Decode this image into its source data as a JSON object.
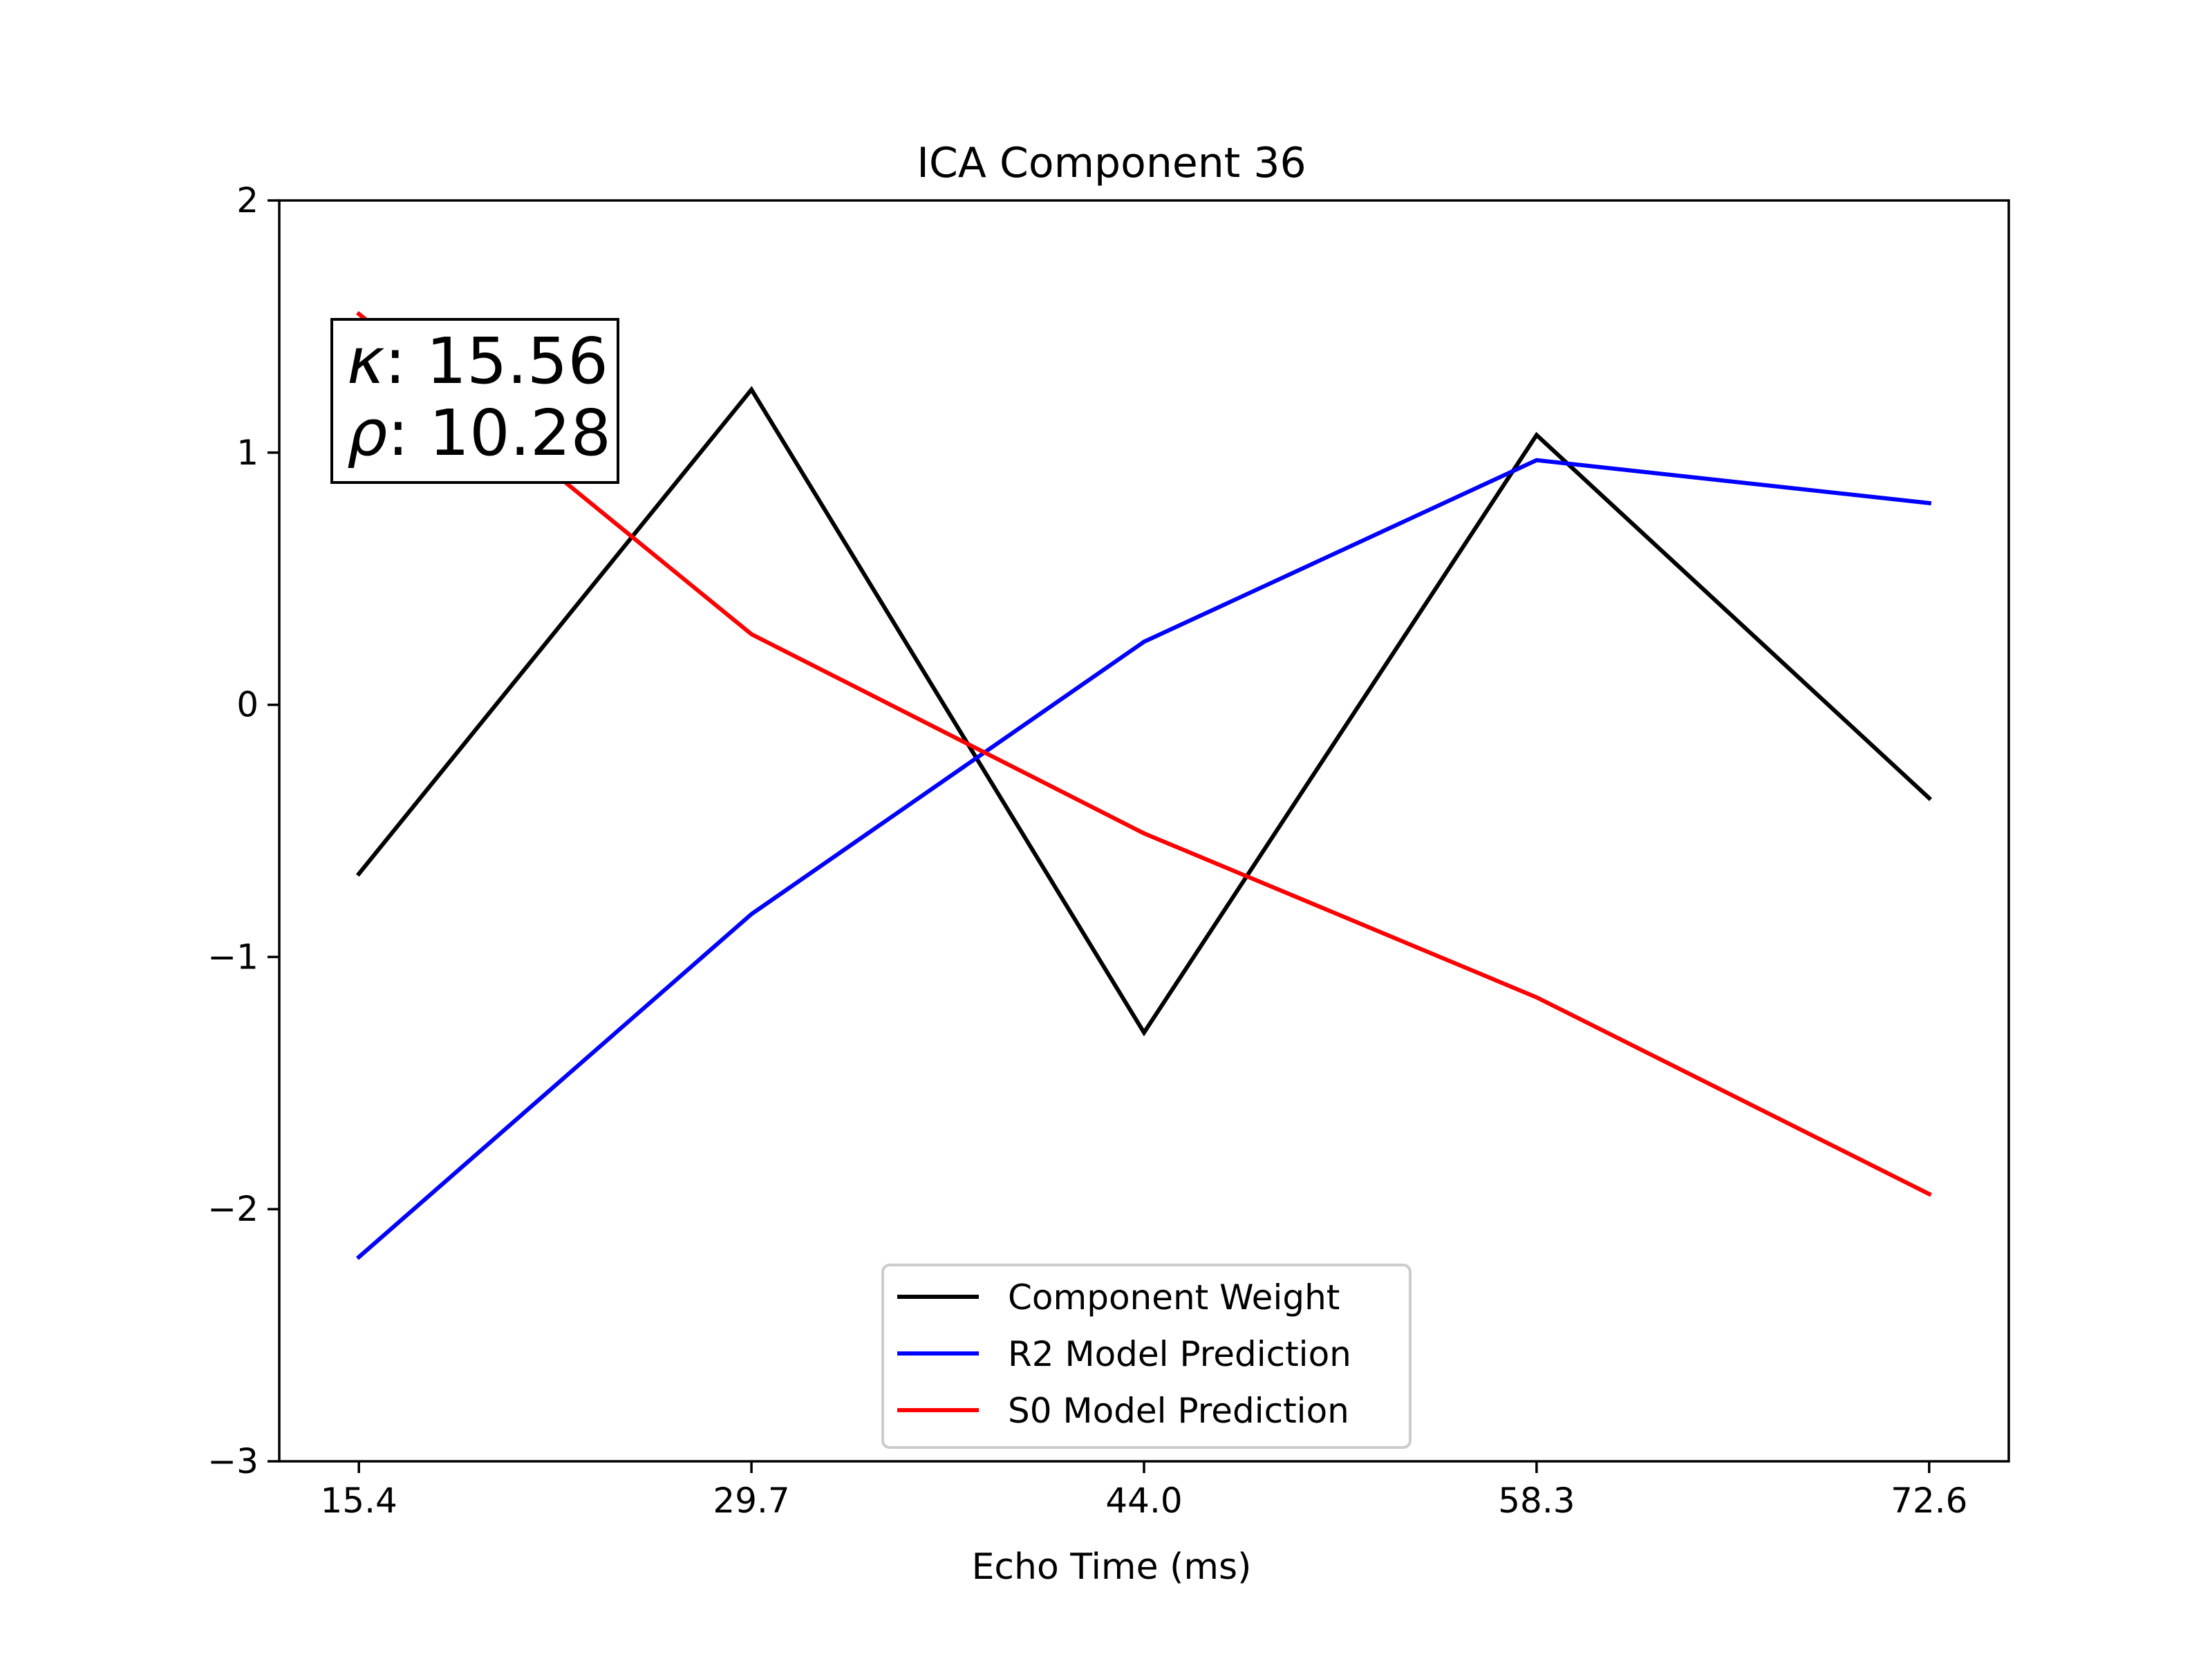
{
  "chart_data": {
    "type": "line",
    "title": "ICA Component 36",
    "xlabel": "Echo Time (ms)",
    "ylabel": "",
    "x": [
      15.4,
      29.7,
      44.0,
      58.3,
      72.6
    ],
    "x_tick_labels": [
      "15.4",
      "29.7",
      "44.0",
      "58.3",
      "72.6"
    ],
    "xlim": [
      12.5,
      75.5
    ],
    "ylim": [
      -3,
      2
    ],
    "y_ticks": [
      2,
      1,
      0,
      -1,
      -2,
      -3
    ],
    "y_tick_labels": [
      "2",
      "1",
      "0",
      "−1",
      "−2",
      "−3"
    ],
    "grid": false,
    "legend_position": "bottom-center",
    "series": [
      {
        "name": "Component Weight",
        "color": "#000000",
        "values": [
          -0.67,
          1.25,
          -1.3,
          1.07,
          -0.37
        ]
      },
      {
        "name": "R2 Model Prediction",
        "color": "#0000ff",
        "values": [
          -2.19,
          -0.83,
          0.25,
          0.97,
          0.8
        ]
      },
      {
        "name": "S0 Model Prediction",
        "color": "#ff0000",
        "values": [
          1.55,
          0.28,
          -0.51,
          -1.16,
          -1.94
        ]
      }
    ],
    "annotation": {
      "kappa_symbol": "κ",
      "kappa_value": ": 15.56",
      "rho_symbol": "ρ",
      "rho_value": ": 10.28"
    }
  }
}
